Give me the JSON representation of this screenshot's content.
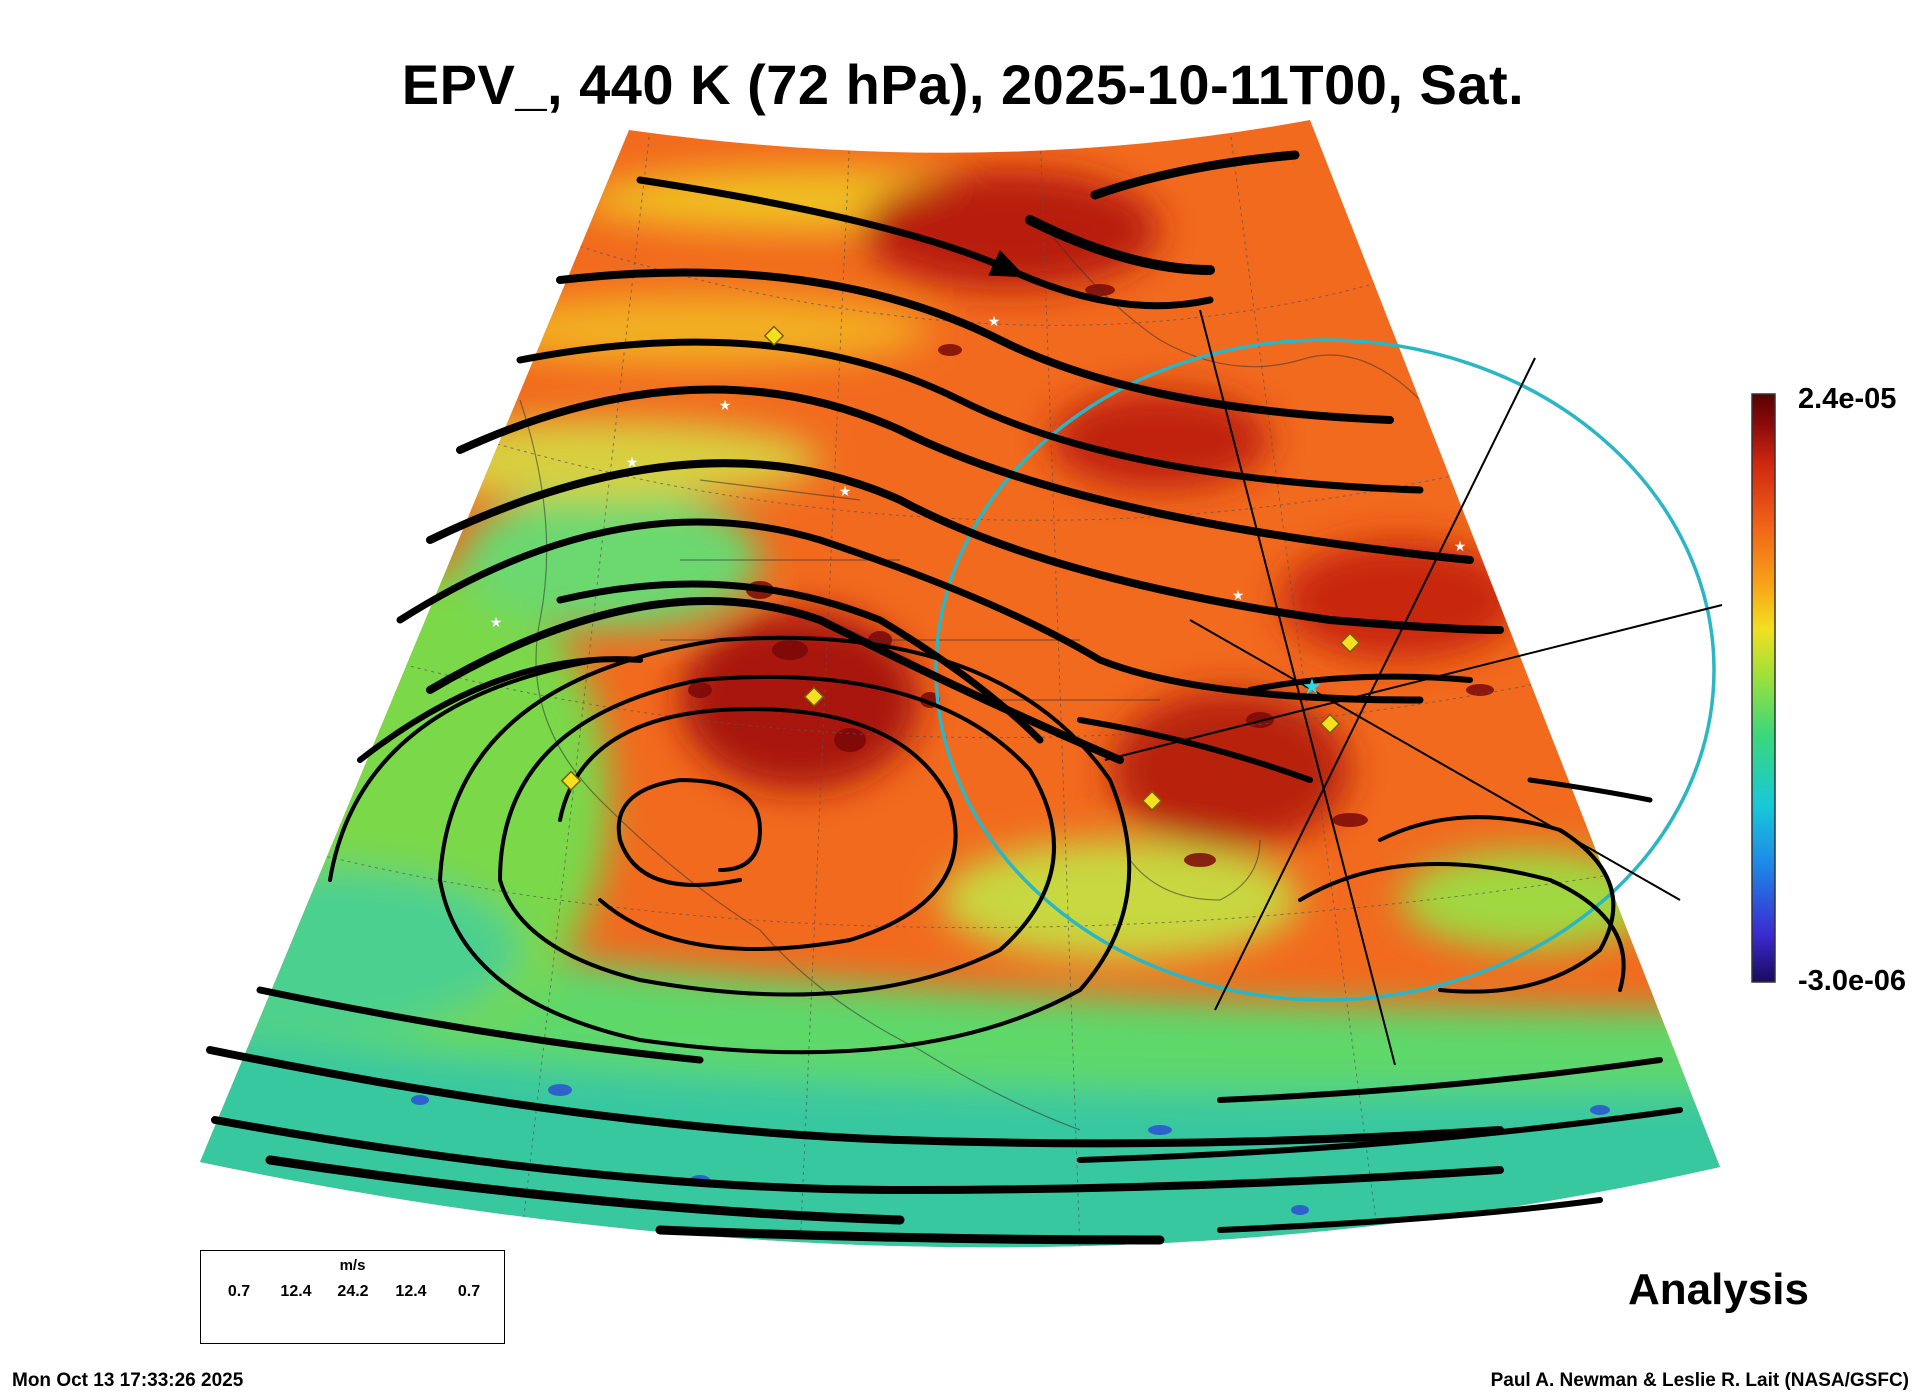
{
  "title": "EPV_, 440 K (72 hPa), 2025-10-11T00, Sat.",
  "colorbar": {
    "max_label": "2.4e-05",
    "min_label": "-3.0e-06",
    "max_value": 2.4e-05,
    "min_value": -3e-06,
    "colors": [
      "#1a0a5c",
      "#3a2ad0",
      "#1e88e8",
      "#18c8d8",
      "#3ad87a",
      "#9ee03a",
      "#f2e020",
      "#f8a018",
      "#f06018",
      "#d02810",
      "#8a0a0a",
      "#5a0000"
    ]
  },
  "legend": {
    "unit": "m/s",
    "ticks": [
      "0.7",
      "12.4",
      "24.2",
      "12.4",
      "0.7"
    ]
  },
  "analysis_label": "Analysis",
  "timestamp": "Mon Oct 13 17:33:26 2025",
  "credit": "Paul A. Newman & Leslie R. Lait (NASA/GSFC)"
}
